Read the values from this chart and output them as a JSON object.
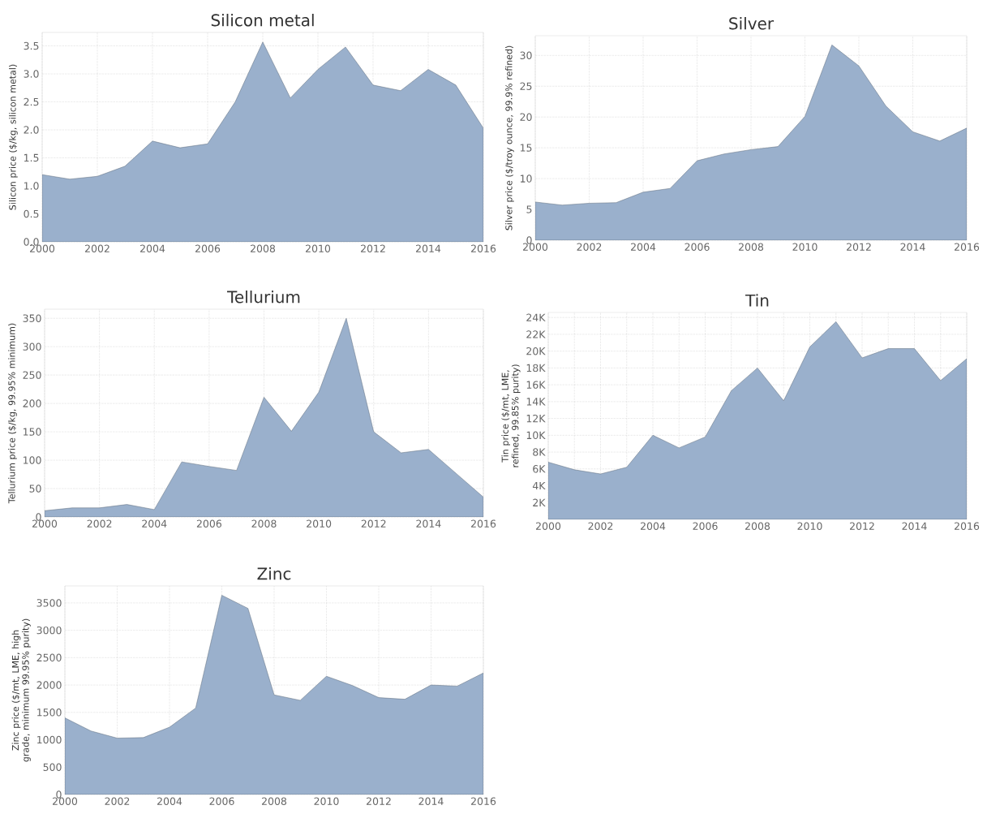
{
  "chart_data": [
    {
      "type": "area",
      "title": "Silicon metal",
      "ylabel": "Silicon price ($/kg, silicon metal)",
      "color": "#9ab0cc",
      "grid": true,
      "x": [
        2000,
        2001,
        2002,
        2003,
        2004,
        2005,
        2006,
        2007,
        2008,
        2009,
        2010,
        2011,
        2012,
        2013,
        2014,
        2015,
        2016
      ],
      "values": [
        1.2,
        1.12,
        1.17,
        1.35,
        1.8,
        1.68,
        1.75,
        2.5,
        3.57,
        2.57,
        3.08,
        3.48,
        2.8,
        2.7,
        3.08,
        2.8,
        2.03
      ],
      "xlim": [
        2000,
        2016
      ],
      "xticks": [
        2000,
        2002,
        2004,
        2006,
        2008,
        2010,
        2012,
        2014,
        2016
      ],
      "ylim": [
        0,
        3.74
      ],
      "yticks": [
        {
          "value": 0,
          "label": "0.0"
        },
        0.5,
        {
          "value": 1,
          "label": "1.0"
        },
        1.5,
        {
          "value": 2,
          "label": "2.0"
        },
        2.5,
        {
          "value": 3,
          "label": "3.0"
        },
        3.5
      ]
    },
    {
      "type": "area",
      "title": "Silver",
      "ylabel": "Silver price ($/troy ounce, 99.9% refined)",
      "color": "#9ab0cc",
      "grid": true,
      "x": [
        2000,
        2001,
        2002,
        2003,
        2004,
        2005,
        2006,
        2007,
        2008,
        2009,
        2010,
        2011,
        2012,
        2013,
        2014,
        2015,
        2016
      ],
      "values": [
        6.2,
        5.7,
        6.0,
        6.1,
        7.8,
        8.4,
        12.9,
        14.0,
        14.7,
        15.2,
        20.1,
        31.7,
        28.3,
        21.8,
        17.6,
        16.1,
        18.2
      ],
      "xlim": [
        2000,
        2016
      ],
      "xticks": [
        2000,
        2002,
        2004,
        2006,
        2008,
        2010,
        2012,
        2014,
        2016
      ],
      "ylim": [
        0,
        33.2
      ],
      "yticks": [
        0,
        5,
        10,
        15,
        20,
        25,
        30
      ]
    },
    {
      "type": "area",
      "title": "Tellurium",
      "ylabel": "Tellurium price ($/kg, 99.95% minimum)",
      "color": "#9ab0cc",
      "grid": true,
      "x": [
        2000,
        2001,
        2002,
        2003,
        2004,
        2005,
        2006,
        2007,
        2008,
        2009,
        2010,
        2011,
        2012,
        2013,
        2014,
        2015,
        2016
      ],
      "values": [
        11,
        16,
        16,
        22,
        13,
        97,
        89,
        82,
        211,
        151,
        220,
        350,
        150,
        113,
        119,
        77,
        35
      ],
      "xlim": [
        2000,
        2016
      ],
      "xticks": [
        2000,
        2002,
        2004,
        2006,
        2008,
        2010,
        2012,
        2014,
        2016
      ],
      "ylim": [
        0,
        366
      ],
      "yticks": [
        0,
        50,
        100,
        150,
        200,
        250,
        300,
        350
      ]
    },
    {
      "type": "area",
      "title": "Tin",
      "ylabel": "Tin price ($/mt, LME, refined, 99.85% purity)",
      "color": "#9ab0cc",
      "grid": true,
      "x": [
        2000,
        2001,
        2002,
        2003,
        2004,
        2005,
        2006,
        2007,
        2008,
        2009,
        2010,
        2011,
        2012,
        2013,
        2014,
        2015,
        2016
      ],
      "values": [
        6800,
        5900,
        5400,
        6200,
        10000,
        8500,
        9800,
        15300,
        18000,
        14100,
        20500,
        23500,
        19200,
        20300,
        20300,
        16500,
        19100
      ],
      "xlim": [
        2000,
        2016
      ],
      "xticks": [
        2000,
        {
          "value": 2001,
          "label": null
        },
        2002,
        {
          "value": 2003,
          "label": null
        },
        2004,
        {
          "value": 2005,
          "label": null
        },
        2006,
        {
          "value": 2007,
          "label": null
        },
        2008,
        {
          "value": 2009,
          "label": null
        },
        2010,
        {
          "value": 2011,
          "label": null
        },
        2012,
        {
          "value": 2013,
          "label": null
        },
        2014,
        {
          "value": 2015,
          "label": null
        },
        2016
      ],
      "ylim": [
        0,
        24600
      ],
      "yticks": [
        {
          "value": 2000,
          "label": "2K"
        },
        {
          "value": 4000,
          "label": "4K"
        },
        {
          "value": 6000,
          "label": "6K"
        },
        {
          "value": 8000,
          "label": "8K"
        },
        {
          "value": 10000,
          "label": "10K"
        },
        {
          "value": 12000,
          "label": "12K"
        },
        {
          "value": 14000,
          "label": "14K"
        },
        {
          "value": 16000,
          "label": "16K"
        },
        {
          "value": 18000,
          "label": "18K"
        },
        {
          "value": 20000,
          "label": "20K"
        },
        {
          "value": 22000,
          "label": "22K"
        },
        {
          "value": 24000,
          "label": "24K"
        }
      ]
    },
    {
      "type": "area",
      "title": "Zinc",
      "ylabel": "Zinc price ($/mt, LME, high grade, minimum 99.95% purity)",
      "color": "#9ab0cc",
      "grid": true,
      "x": [
        2000,
        2001,
        2002,
        2003,
        2004,
        2005,
        2006,
        2007,
        2008,
        2009,
        2010,
        2011,
        2012,
        2013,
        2014,
        2015,
        2016
      ],
      "values": [
        1400,
        1160,
        1030,
        1040,
        1230,
        1580,
        3640,
        3400,
        1820,
        1720,
        2160,
        1990,
        1770,
        1740,
        2000,
        1980,
        2220
      ],
      "xlim": [
        2000,
        2016
      ],
      "xticks": [
        2000,
        2002,
        2004,
        2006,
        2008,
        2010,
        2012,
        2014,
        2016
      ],
      "ylim": [
        0,
        3810
      ],
      "yticks": [
        0,
        500,
        1000,
        1500,
        2000,
        2500,
        3000,
        3500
      ]
    }
  ]
}
